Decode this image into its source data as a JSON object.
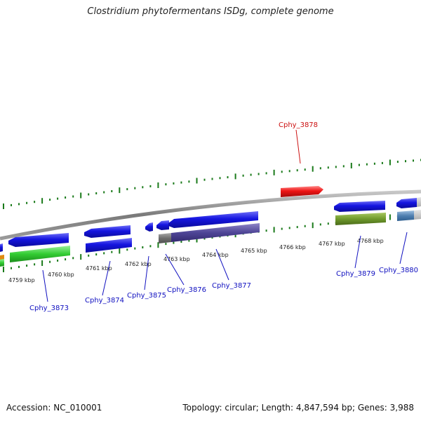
{
  "title": "Clostridium phytofermentans ISDg, complete genome",
  "footer": {
    "accession": "Accession: NC_010001",
    "summary": "Topology: circular; Length: 4,847,594 bp; Genes: 3,988"
  },
  "kbp_labels": [
    "4759 kbp",
    "4760 kbp",
    "4761 kbp",
    "4762 kbp",
    "4763 kbp",
    "4764 kbp",
    "4765 kbp",
    "4766 kbp",
    "4767 kbp",
    "4768 kbp"
  ],
  "gene_labels": {
    "cphy_3873": "Cphy_3873",
    "cphy_3874": "Cphy_3874",
    "cphy_3875": "Cphy_3875",
    "cphy_3876": "Cphy_3876",
    "cphy_3877": "Cphy_3877",
    "cphy_3878": "Cphy_3878",
    "cphy_3879": "Cphy_3879",
    "cphy_3880": "Cphy_3880"
  },
  "colors": {
    "backbone": "#8a8a8a",
    "tick": "#1a7a1a",
    "gene_blue": "#1010e0",
    "gene_red": "#e01010",
    "label_blue": "#1010c0",
    "label_red": "#cc1111"
  }
}
